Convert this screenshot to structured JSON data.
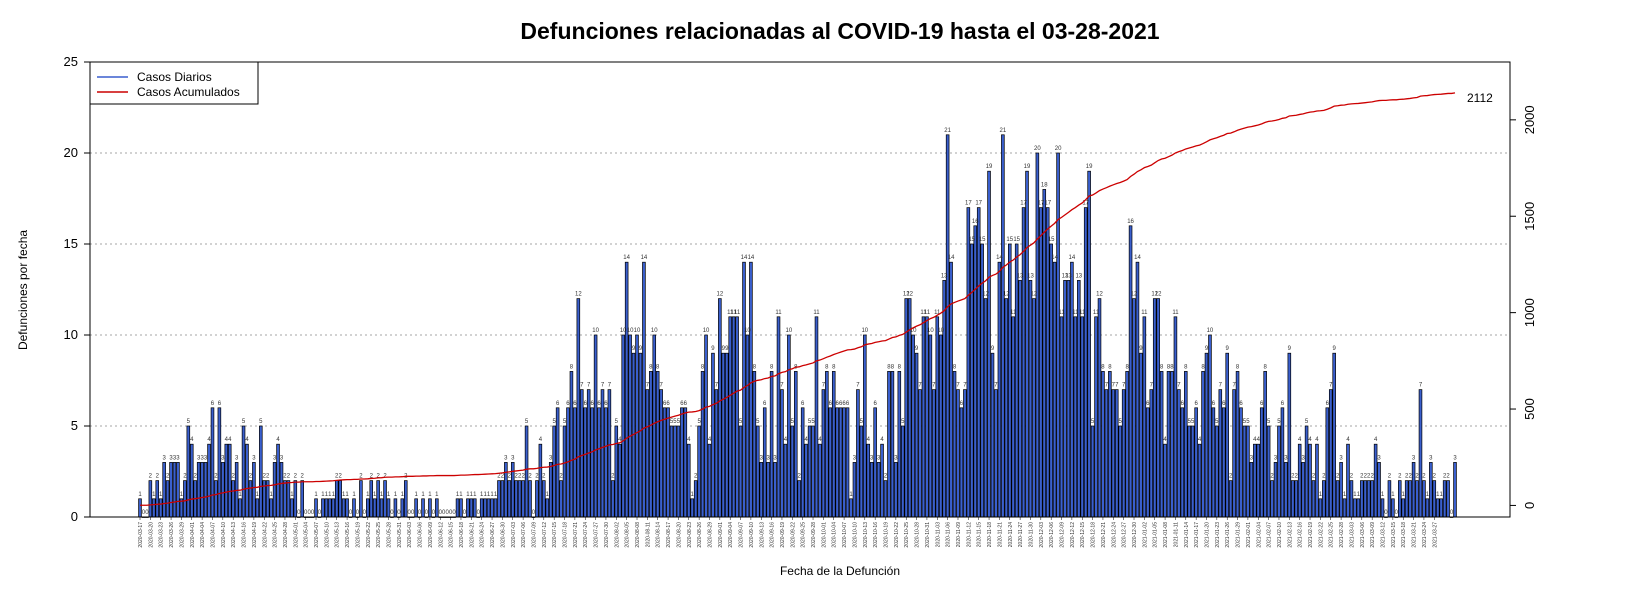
{
  "chart_data": {
    "type": "bar",
    "title": "Defunciones relacionadas al COVID-19 hasta el 03-28-2021",
    "xlabel": "Fecha de la Defunción",
    "ylabel": "Defunciones por fecha",
    "ylim": [
      0,
      25
    ],
    "y_ticks": [
      0,
      5,
      10,
      15,
      20,
      25
    ],
    "y2lim": [
      -60,
      2300
    ],
    "y2_ticks": [
      0,
      500,
      1000,
      1500,
      2000
    ],
    "grid": "horizontal dotted",
    "legend_position": "top-left",
    "colors": {
      "daily": "#3a5fcd",
      "cumulative": "#cc0000",
      "bar_border": "#000000"
    },
    "series": [
      {
        "name": "Casos Diarios",
        "type": "bar",
        "values": [
          1,
          0,
          0,
          2,
          1,
          2,
          1,
          3,
          2,
          3,
          3,
          3,
          1,
          2,
          5,
          4,
          2,
          3,
          3,
          3,
          4,
          6,
          2,
          6,
          3,
          4,
          4,
          2,
          3,
          1,
          5,
          4,
          2,
          3,
          1,
          5,
          2,
          2,
          1,
          3,
          4,
          3,
          2,
          2,
          1,
          2,
          0,
          2,
          0,
          0,
          0,
          1,
          0,
          1,
          1,
          1,
          1,
          2,
          2,
          1,
          1,
          0,
          1,
          0,
          2,
          0,
          1,
          2,
          1,
          2,
          1,
          2,
          1,
          0,
          1,
          0,
          1,
          2,
          0,
          0,
          1,
          0,
          1,
          0,
          1,
          0,
          1,
          0,
          0,
          0,
          0,
          0,
          1,
          1,
          0,
          1,
          1,
          1,
          0,
          1,
          1,
          1,
          1,
          1,
          2,
          2,
          3,
          2,
          3,
          2,
          2,
          2,
          5,
          2,
          0,
          2,
          4,
          2,
          1,
          3,
          5,
          6,
          2,
          5,
          6,
          8,
          6,
          12,
          7,
          6,
          7,
          6,
          10,
          6,
          7,
          6,
          7,
          2,
          5,
          4,
          10,
          14,
          10,
          9,
          10,
          9,
          14,
          7,
          8,
          10,
          8,
          7,
          6,
          6,
          5,
          5,
          5,
          6,
          6,
          4,
          1,
          2,
          5,
          8,
          10,
          4,
          9,
          7,
          12,
          9,
          9,
          11,
          11,
          11,
          5,
          14,
          10,
          14,
          8,
          5,
          3,
          6,
          3,
          8,
          3,
          11,
          7,
          4,
          10,
          5,
          8,
          2,
          6,
          4,
          5,
          5,
          11,
          4,
          7,
          8,
          6,
          8,
          6,
          6,
          6,
          6,
          1,
          3,
          7,
          5,
          10,
          4,
          3,
          6,
          3,
          4,
          2,
          8,
          8,
          3,
          8,
          5,
          12,
          12,
          10,
          9,
          7,
          11,
          11,
          10,
          7,
          11,
          10,
          13,
          21,
          14,
          8,
          7,
          6,
          7,
          17,
          15,
          16,
          17,
          15,
          12,
          19,
          9,
          7,
          14,
          21,
          12,
          15,
          11,
          15,
          13,
          17,
          19,
          13,
          12,
          20,
          17,
          18,
          17,
          15,
          14,
          20,
          11,
          13,
          13,
          14,
          11,
          13,
          11,
          17,
          19,
          5,
          11,
          12,
          8,
          7,
          8,
          7,
          7,
          5,
          7,
          8,
          16,
          12,
          14,
          9,
          11,
          6,
          7,
          12,
          12,
          8,
          4,
          8,
          8,
          11,
          7,
          6,
          8,
          5,
          5,
          6,
          4,
          8,
          9,
          10,
          6,
          5,
          7,
          6,
          9,
          2,
          7,
          8,
          6,
          5,
          5,
          3,
          4,
          4,
          6,
          8,
          5,
          2,
          3,
          5,
          6,
          3,
          9,
          2,
          2,
          4,
          3,
          5,
          4,
          2,
          4,
          1,
          2,
          6,
          7,
          9,
          2,
          3,
          1,
          4,
          2,
          1,
          1,
          2,
          2,
          2,
          2,
          4,
          3,
          1,
          0,
          2,
          1,
          0,
          2,
          1,
          2,
          2,
          3,
          2,
          7,
          2,
          1,
          3,
          2,
          1,
          1,
          2,
          2,
          0,
          3
        ]
      },
      {
        "name": "Casos Acumulados",
        "type": "line",
        "end_value": 2112
      }
    ],
    "date_labels": [
      "2020-03-17",
      "2020-03-20",
      "2020-03-23",
      "2020-03-26",
      "2020-03-29",
      "2020-04-01",
      "2020-04-04",
      "2020-04-07",
      "2020-04-10",
      "2020-04-13",
      "2020-04-16",
      "2020-04-19",
      "2020-04-22",
      "2020-04-25",
      "2020-04-28",
      "2020-05-01",
      "2020-05-04",
      "2020-05-07",
      "2020-05-10",
      "2020-05-13",
      "2020-05-16",
      "2020-05-19",
      "2020-05-22",
      "2020-05-25",
      "2020-05-28",
      "2020-05-31",
      "2020-06-03",
      "2020-06-06",
      "2020-06-09",
      "2020-06-12",
      "2020-06-15",
      "2020-06-18",
      "2020-06-21",
      "2020-06-24",
      "2020-06-27",
      "2020-06-30",
      "2020-07-03",
      "2020-07-06",
      "2020-07-09",
      "2020-07-12",
      "2020-07-15",
      "2020-07-18",
      "2020-07-21",
      "2020-07-24",
      "2020-07-27",
      "2020-07-30",
      "2020-08-02",
      "2020-08-05",
      "2020-08-08",
      "2020-08-11",
      "2020-08-14",
      "2020-08-17",
      "2020-08-20",
      "2020-08-23",
      "2020-08-26",
      "2020-08-29",
      "2020-09-01",
      "2020-09-04",
      "2020-09-07",
      "2020-09-10",
      "2020-09-13",
      "2020-09-16",
      "2020-09-19",
      "2020-09-22",
      "2020-09-25",
      "2020-09-28",
      "2020-10-01",
      "2020-10-04",
      "2020-10-07",
      "2020-10-10",
      "2020-10-13",
      "2020-10-16",
      "2020-10-19",
      "2020-10-22",
      "2020-10-25",
      "2020-10-28",
      "2020-10-31",
      "2020-11-03",
      "2020-11-06",
      "2020-11-09",
      "2020-11-12",
      "2020-11-15",
      "2020-11-18",
      "2020-11-21",
      "2020-11-24",
      "2020-11-27",
      "2020-11-30",
      "2020-12-03",
      "2020-12-06",
      "2020-12-09",
      "2020-12-12",
      "2020-12-15",
      "2020-12-18",
      "2020-12-21",
      "2020-12-24",
      "2020-12-27",
      "2020-12-30",
      "2021-01-02",
      "2021-01-05",
      "2021-01-08",
      "2021-01-11",
      "2021-01-14",
      "2021-01-17",
      "2021-01-20",
      "2021-01-23",
      "2021-01-26",
      "2021-01-29",
      "2021-02-01",
      "2021-02-04",
      "2021-02-07",
      "2021-02-10",
      "2021-02-13",
      "2021-02-16",
      "2021-02-19",
      "2021-02-22",
      "2021-02-25",
      "2021-02-28",
      "2021-03-03",
      "2021-03-06",
      "2021-03-09",
      "2021-03-12",
      "2021-03-15",
      "2021-03-18",
      "2021-03-21",
      "2021-03-24",
      "2021-03-27"
    ]
  }
}
